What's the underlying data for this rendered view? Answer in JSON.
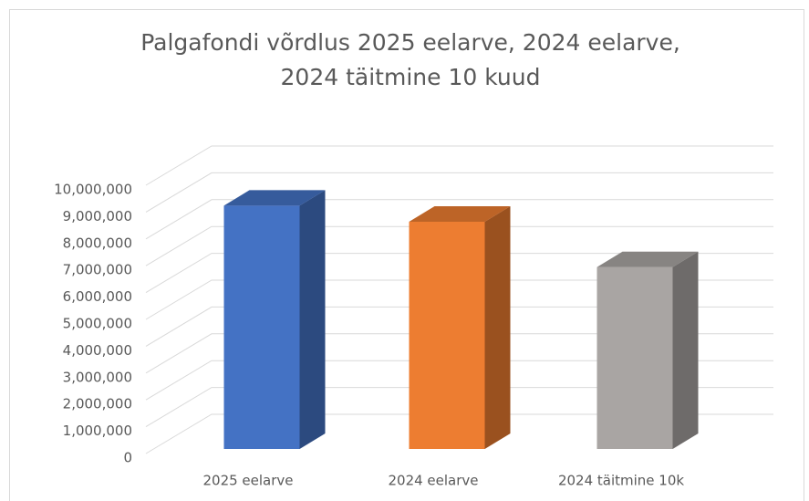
{
  "chart_data": {
    "type": "bar3d",
    "title": "Palgafondi võrdlus 2025 eelarve, 2024 eelarve, 2024 täitmine 10 kuud",
    "categories": [
      "2025 eelarve",
      "2024 eelarve",
      "2024 täitmine 10k"
    ],
    "values": [
      9100000,
      8500000,
      6800000
    ],
    "colors": [
      "#4472c4",
      "#ed7d31",
      "#a9a5a3"
    ],
    "ylim": [
      0,
      10000000
    ],
    "yticks": [
      0,
      {
        "value": 1000000,
        "label": "1,000,000"
      },
      {
        "value": 2000000,
        "label": "2,000,000"
      },
      {
        "value": 3000000,
        "label": "3,000,000"
      },
      {
        "value": 4000000,
        "label": "4,000,000"
      },
      {
        "value": 5000000,
        "label": "5,000,000"
      },
      {
        "value": 6000000,
        "label": "6,000,000"
      },
      {
        "value": 7000000,
        "label": "7,000,000"
      },
      {
        "value": 8000000,
        "label": "8,000,000"
      },
      {
        "value": 9000000,
        "label": "9,000,000"
      },
      {
        "value": 10000000,
        "label": "10,000,000"
      }
    ],
    "grid": true
  }
}
